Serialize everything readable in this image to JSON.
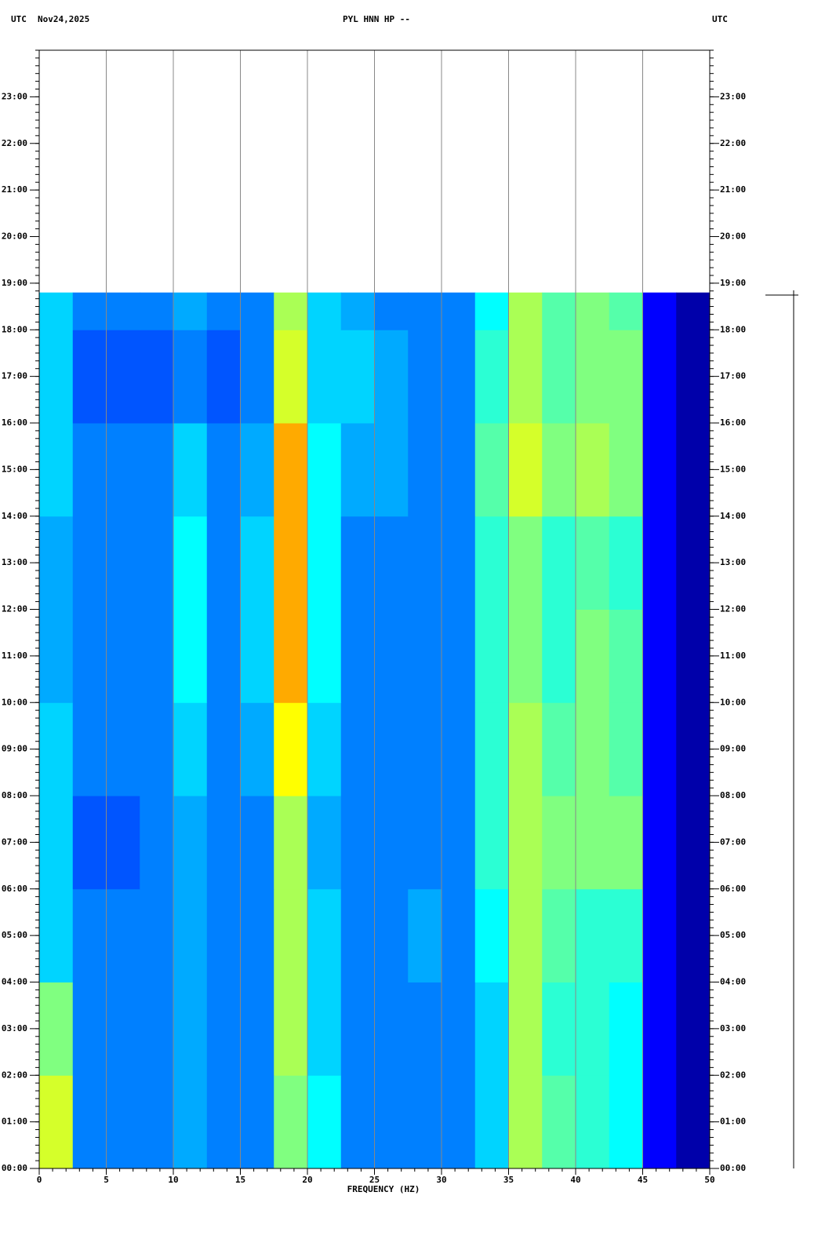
{
  "chart_data": {
    "type": "heatmap",
    "title_left": "UTC",
    "date": "Nov24,2025",
    "title": "PYL HNN HP --",
    "title_right": "UTC",
    "xlabel": "FREQUENCY (HZ)",
    "colormap": "jet",
    "zlim": [
      0,
      12
    ],
    "xlim": [
      0,
      50
    ],
    "xticks": [
      0,
      5,
      10,
      15,
      20,
      25,
      30,
      35,
      40,
      45,
      50
    ],
    "ylim": [
      0,
      24
    ],
    "yticks": [
      {
        "value": 0,
        "label": "00:00"
      },
      {
        "value": 1,
        "label": "01:00"
      },
      {
        "value": 2,
        "label": "02:00"
      },
      {
        "value": 3,
        "label": "03:00"
      },
      {
        "value": 4,
        "label": "04:00"
      },
      {
        "value": 5,
        "label": "05:00"
      },
      {
        "value": 6,
        "label": "06:00"
      },
      {
        "value": 7,
        "label": "07:00"
      },
      {
        "value": 8,
        "label": "08:00"
      },
      {
        "value": 9,
        "label": "09:00"
      },
      {
        "value": 10,
        "label": "10:00"
      },
      {
        "value": 11,
        "label": "11:00"
      },
      {
        "value": 12,
        "label": "12:00"
      },
      {
        "value": 13,
        "label": "13:00"
      },
      {
        "value": 14,
        "label": "14:00"
      },
      {
        "value": 15,
        "label": "15:00"
      },
      {
        "value": 16,
        "label": "16:00"
      },
      {
        "value": 17,
        "label": "17:00"
      },
      {
        "value": 18,
        "label": "18:00"
      },
      {
        "value": 19,
        "label": "19:00"
      },
      {
        "value": 20,
        "label": "20:00"
      },
      {
        "value": 21,
        "label": "21:00"
      },
      {
        "value": 22,
        "label": "22:00"
      },
      {
        "value": 23,
        "label": "23:00"
      }
    ],
    "x_bins": [
      0,
      2.5,
      5,
      7.5,
      10,
      12.5,
      15,
      17.5,
      20,
      22.5,
      25,
      27.5,
      30,
      32.5,
      35,
      37.5,
      40,
      42.5,
      45,
      47.5,
      50
    ],
    "y_bins": [
      0,
      2,
      4,
      6,
      8,
      10,
      12,
      14,
      16,
      18,
      18.8
    ],
    "values": [
      [
        7,
        3,
        3,
        3,
        3.5,
        3,
        3,
        6,
        4.5,
        3,
        3,
        3,
        3,
        4,
        6.5,
        5.5,
        5,
        4.5,
        1.5,
        0.5
      ],
      [
        6,
        3,
        3,
        3,
        3.5,
        3,
        3,
        6.5,
        4,
        3,
        3,
        3,
        3,
        4,
        6.5,
        5,
        5,
        4.5,
        1.5,
        0.5
      ],
      [
        4,
        3,
        3,
        3,
        3.5,
        3,
        3,
        6.5,
        4,
        3,
        3,
        3.5,
        3,
        4.5,
        6.5,
        5.5,
        5,
        5,
        1.5,
        0.5
      ],
      [
        4,
        2.5,
        2.5,
        3,
        3.5,
        3,
        3,
        6.5,
        3.5,
        3,
        3,
        3,
        3,
        5,
        6.5,
        6,
        6,
        6,
        1.5,
        0.5
      ],
      [
        4,
        3,
        3,
        3,
        4,
        3,
        3.5,
        7.5,
        4,
        3,
        3,
        3,
        3,
        5,
        6.5,
        5.5,
        6,
        5.5,
        1.5,
        0.5
      ],
      [
        3.5,
        3,
        3,
        3,
        4.5,
        3,
        4,
        8.5,
        4.5,
        3,
        3,
        3,
        3,
        5,
        6,
        5,
        6,
        5.5,
        1.5,
        0.5
      ],
      [
        3.5,
        3,
        3,
        3,
        4.5,
        3,
        4,
        8.5,
        4.5,
        3,
        3,
        3,
        3,
        5,
        6,
        5,
        5.5,
        5,
        1.5,
        0.5
      ],
      [
        4,
        3,
        3,
        3,
        4,
        3,
        3.5,
        8.5,
        4.5,
        3.5,
        3.5,
        3,
        3,
        5.5,
        7,
        6,
        6.5,
        6,
        1.5,
        0.5
      ],
      [
        4,
        2.5,
        2.5,
        2.5,
        3,
        2.5,
        3,
        7,
        4,
        4,
        3.5,
        3,
        3,
        5,
        6.5,
        5.5,
        6,
        6,
        1.5,
        0.5
      ],
      [
        4,
        3,
        3,
        3,
        3.5,
        3,
        3,
        6.5,
        4,
        3.5,
        3,
        3,
        3,
        4.5,
        6.5,
        5.5,
        6,
        5.5,
        1.5,
        0.5
      ]
    ]
  }
}
